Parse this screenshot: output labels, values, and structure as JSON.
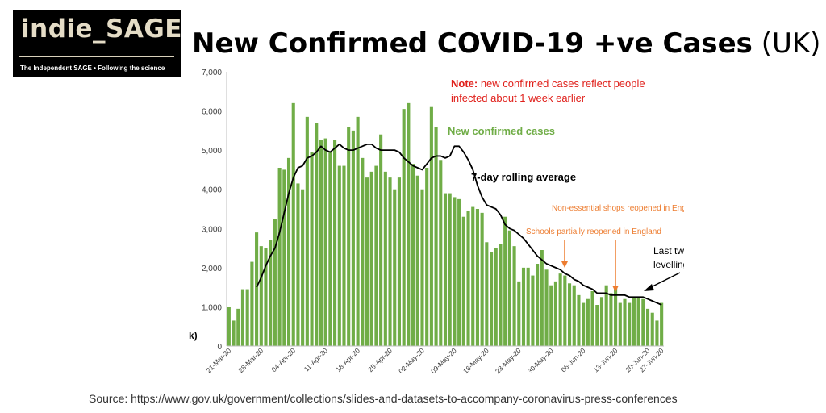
{
  "logo": {
    "title": "indie_SAGE",
    "tagline": "The Independent SAGE • Following the science"
  },
  "header": {
    "title_bold": "New Confirmed COVID-19 +ve Cases",
    "title_suffix": "(UK)"
  },
  "source": "Source:  https://www.gov.uk/government/collections/slides-and-datasets-to-accompany-coronavirus-press-conferences",
  "colors": {
    "bar": "#70ad47",
    "line": "#000000",
    "note": "#e0201b",
    "event": "#ed7d31",
    "accent_text": "#70ad47"
  },
  "chart_data": {
    "type": "bar",
    "ylim": [
      0,
      7000
    ],
    "yticks": [
      "0",
      "1,000",
      "2,000",
      "3,000",
      "4,000",
      "5,000",
      "6,000",
      "7,000"
    ],
    "ytick_values": [
      0,
      1000,
      2000,
      3000,
      4000,
      5000,
      6000,
      7000
    ],
    "ylabel_fragment": "k)",
    "xtick_labels": [
      "21-Mar-20",
      "28-Mar-20",
      "04-Apr-20",
      "11-Apr-20",
      "18-Apr-20",
      "25-Apr-20",
      "02-May-20",
      "09-May-20",
      "16-May-20",
      "23-May-20",
      "30-May-20",
      "06-Jun-20",
      "13-Jun-20",
      "20-Jun-20",
      "27-Jun-20"
    ],
    "first_date": "21-Mar-20",
    "series": [
      {
        "name": "New confirmed cases",
        "type": "bar",
        "values": [
          1000,
          650,
          950,
          1450,
          1450,
          2150,
          2900,
          2550,
          2500,
          2700,
          3250,
          4550,
          4500,
          4800,
          6200,
          4150,
          4000,
          5850,
          4950,
          5700,
          5250,
          5300,
          4950,
          5250,
          4600,
          4600,
          5600,
          5500,
          5850,
          4800,
          4300,
          4450,
          4600,
          5400,
          4450,
          4300,
          4000,
          4300,
          6050,
          6200,
          4650,
          4350,
          4000,
          4550,
          6100,
          5600,
          4750,
          3900,
          3900,
          3800,
          3750,
          3300,
          3450,
          3550,
          3500,
          3400,
          2650,
          2400,
          2500,
          2600,
          3300,
          2950,
          2550,
          1650,
          2000,
          2000,
          1800,
          2100,
          2450,
          1950,
          1550,
          1650,
          1850,
          1800,
          1600,
          1550,
          1300,
          1100,
          1200,
          1400,
          1050,
          1250,
          1550,
          1350,
          1500,
          1100,
          1200,
          1100,
          1250,
          1250,
          1200,
          950,
          850,
          650,
          1100
        ]
      },
      {
        "name": "7-day rolling average",
        "type": "line",
        "values": [
          null,
          null,
          null,
          null,
          null,
          null,
          1500,
          1750,
          2050,
          2300,
          2500,
          2900,
          3400,
          3900,
          4300,
          4550,
          4600,
          4800,
          4850,
          4950,
          5100,
          5000,
          4950,
          5050,
          5150,
          5050,
          5000,
          5000,
          5050,
          5100,
          5150,
          5150,
          5050,
          5000,
          5000,
          5000,
          5000,
          4950,
          4800,
          4700,
          4600,
          4550,
          4500,
          4650,
          4800,
          4850,
          4850,
          4800,
          4850,
          5100,
          5100,
          4950,
          4750,
          4500,
          4100,
          3800,
          3600,
          3550,
          3500,
          3350,
          3100,
          3000,
          2950,
          2850,
          2750,
          2600,
          2450,
          2300,
          2200,
          2100,
          2050,
          2000,
          1950,
          1850,
          1800,
          1700,
          1650,
          1550,
          1500,
          1450,
          1350,
          1350,
          1350,
          1300,
          1300,
          1300,
          1300,
          1250,
          1250,
          1250,
          1250,
          1200,
          1150,
          1100,
          1050
        ]
      }
    ],
    "annotations": {
      "note_bold": "Note:",
      "note_rest": " new confirmed cases reflect people",
      "note_line2": "infected about 1 week earlier",
      "series_label": "New confirmed cases",
      "rolling_label": "7-day rolling average",
      "shops_event": "Non-essential shops reopened in England",
      "schools_event": "Schools partially reopened in England",
      "levelling_line1": "Last two weeks",
      "levelling_line2": "levelling off"
    }
  }
}
